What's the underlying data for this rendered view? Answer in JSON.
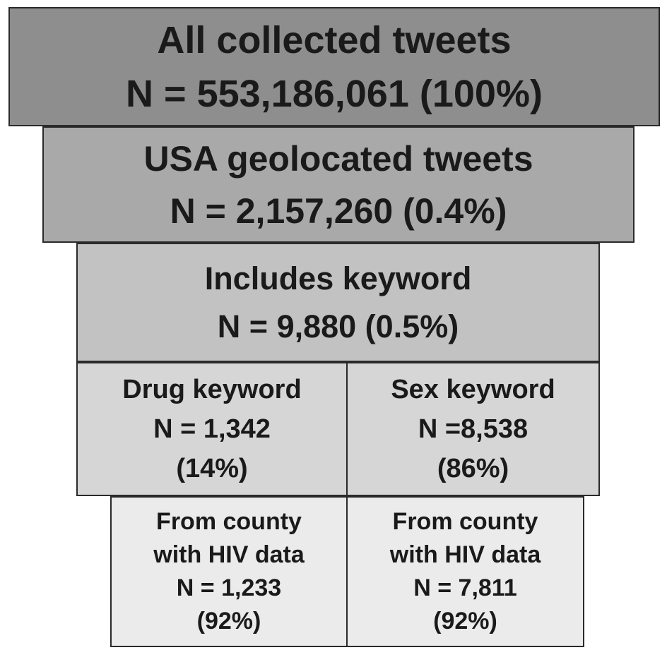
{
  "level1": {
    "title": "All collected tweets",
    "count": "N =  553,186,061 (100%)"
  },
  "level2": {
    "title": "USA geolocated tweets",
    "count": "N = 2,157,260 (0.4%)"
  },
  "level3": {
    "title": "Includes keyword",
    "count": "N = 9,880 (0.5%)"
  },
  "level4": {
    "drug": {
      "title": "Drug keyword",
      "count": "N = 1,342",
      "percent": "(14%)"
    },
    "sex": {
      "title": "Sex keyword",
      "count": "N =8,538",
      "percent": "(86%)"
    }
  },
  "level5": {
    "drug": {
      "line1": "From county",
      "line2": "with HIV data",
      "count": "N = 1,233",
      "percent": "(92%)"
    },
    "sex": {
      "line1": "From county",
      "line2": "with HIV data",
      "count": "N = 7,811",
      "percent": "(92%)"
    }
  },
  "colors": {
    "level1": "#8e8e8e",
    "level2": "#a9a9a9",
    "level3": "#c2c2c2",
    "level4": "#d6d6d6",
    "level5": "#ebebeb",
    "border": "#2a2a2a"
  }
}
